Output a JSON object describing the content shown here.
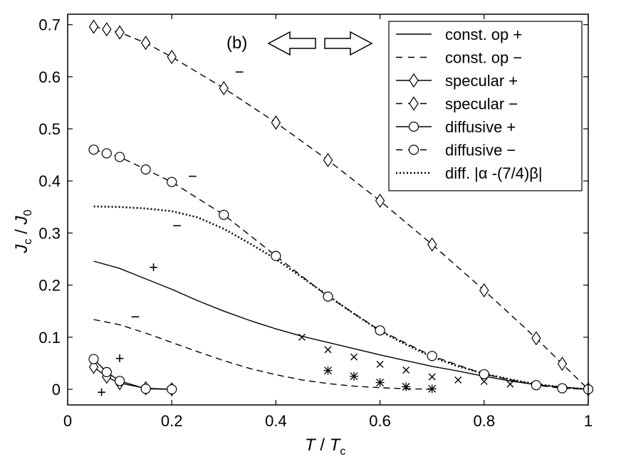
{
  "chart_data": {
    "type": "line",
    "title": "",
    "panel_label": "(b)",
    "xlabel": {
      "main": "T",
      "sep": " / ",
      "sub_base": "T",
      "sub": "c"
    },
    "ylabel": {
      "base": "J",
      "sub": "c",
      "sep": " / ",
      "base2": "J",
      "sub2": "0"
    },
    "xlim": [
      0,
      1
    ],
    "ylim": [
      -0.03,
      0.72
    ],
    "xticks": [
      0,
      0.2,
      0.4,
      0.6,
      0.8,
      1
    ],
    "xtick_labels": [
      "0",
      "0.2",
      "0.4",
      "0.6",
      "0.8",
      "1"
    ],
    "yticks": [
      0,
      0.1,
      0.2,
      0.3,
      0.4,
      0.5,
      0.6,
      0.7
    ],
    "ytick_labels": [
      "0",
      "0.1",
      "0.2",
      "0.3",
      "0.4",
      "0.5",
      "0.6",
      "0.7"
    ],
    "legend_position": "top-right",
    "series": [
      {
        "name": "const. op +",
        "style": "solid",
        "marker": "none",
        "x": [
          0.05,
          0.1,
          0.15,
          0.2,
          0.25,
          0.3,
          0.35,
          0.4,
          0.45,
          0.5,
          0.55,
          0.6,
          0.65,
          0.7,
          0.75,
          0.8,
          0.85,
          0.9,
          0.95,
          1.0
        ],
        "y": [
          0.246,
          0.232,
          0.212,
          0.192,
          0.17,
          0.15,
          0.132,
          0.116,
          0.102,
          0.09,
          0.078,
          0.066,
          0.055,
          0.044,
          0.035,
          0.025,
          0.016,
          0.009,
          0.004,
          0.0
        ]
      },
      {
        "name": "const. op −",
        "style": "dashed",
        "marker": "none",
        "x": [
          0.05,
          0.1,
          0.15,
          0.2,
          0.25,
          0.3,
          0.35,
          0.4,
          0.45,
          0.5,
          0.55,
          0.6,
          0.65,
          0.7
        ],
        "y": [
          0.134,
          0.124,
          0.108,
          0.09,
          0.072,
          0.055,
          0.04,
          0.028,
          0.018,
          0.011,
          0.006,
          0.003,
          0.001,
          0.0
        ]
      },
      {
        "name": "specular +",
        "style": "solid",
        "marker": "diamond",
        "x": [
          0.05,
          0.075,
          0.1,
          0.15,
          0.2
        ],
        "y": [
          0.043,
          0.024,
          0.012,
          0.002,
          0.0
        ]
      },
      {
        "name": "specular −",
        "style": "dashed",
        "marker": "diamond",
        "x": [
          0.05,
          0.075,
          0.1,
          0.15,
          0.2,
          0.3,
          0.4,
          0.5,
          0.6,
          0.7,
          0.8,
          0.9,
          0.95,
          1.0
        ],
        "y": [
          0.696,
          0.691,
          0.685,
          0.665,
          0.638,
          0.578,
          0.512,
          0.44,
          0.362,
          0.278,
          0.19,
          0.098,
          0.049,
          0.0
        ]
      },
      {
        "name": "diffusive +",
        "style": "solid",
        "marker": "circle",
        "x": [
          0.05,
          0.075,
          0.1,
          0.15,
          0.2
        ],
        "y": [
          0.058,
          0.033,
          0.016,
          0.001,
          0.0
        ]
      },
      {
        "name": "diffusive −",
        "style": "dashed",
        "marker": "circle",
        "x": [
          0.05,
          0.075,
          0.1,
          0.15,
          0.2,
          0.3,
          0.4,
          0.5,
          0.6,
          0.7,
          0.8,
          0.9,
          0.95,
          1.0
        ],
        "y": [
          0.46,
          0.453,
          0.446,
          0.422,
          0.398,
          0.335,
          0.256,
          0.178,
          0.113,
          0.064,
          0.029,
          0.008,
          0.002,
          0.0
        ]
      },
      {
        "name": "diff. |α -(7/4)β|",
        "style": "dotted",
        "marker": "none",
        "x": [
          0.05,
          0.1,
          0.15,
          0.2,
          0.25,
          0.3,
          0.35,
          0.4,
          0.45,
          0.5,
          0.55,
          0.6,
          0.65,
          0.7,
          0.75,
          0.8,
          0.85,
          0.9,
          0.95,
          1.0
        ],
        "y": [
          0.351,
          0.35,
          0.347,
          0.342,
          0.33,
          0.308,
          0.28,
          0.25,
          0.215,
          0.18,
          0.145,
          0.112,
          0.086,
          0.062,
          0.044,
          0.03,
          0.019,
          0.01,
          0.004,
          0.0
        ]
      }
    ],
    "extra_markers": [
      {
        "name": "cross markers",
        "marker": "x",
        "x": [
          0.45,
          0.5,
          0.55,
          0.6,
          0.65,
          0.7,
          0.75,
          0.8,
          0.85
        ],
        "y": [
          0.1,
          0.076,
          0.062,
          0.048,
          0.037,
          0.024,
          0.018,
          0.015,
          0.01
        ]
      },
      {
        "name": "star markers",
        "marker": "star",
        "x": [
          0.5,
          0.55,
          0.6,
          0.65,
          0.7
        ],
        "y": [
          0.036,
          0.025,
          0.013,
          0.005,
          0.001
        ]
      }
    ],
    "annotations": [
      {
        "text": "−",
        "x": 0.33,
        "y": 0.61
      },
      {
        "text": "−",
        "x": 0.24,
        "y": 0.41
      },
      {
        "text": "−",
        "x": 0.21,
        "y": 0.315
      },
      {
        "text": "+",
        "x": 0.165,
        "y": 0.235
      },
      {
        "text": "−",
        "x": 0.13,
        "y": 0.14
      },
      {
        "text": "+",
        "x": 0.1,
        "y": 0.06
      },
      {
        "text": "+",
        "x": 0.065,
        "y": -0.005
      }
    ]
  }
}
